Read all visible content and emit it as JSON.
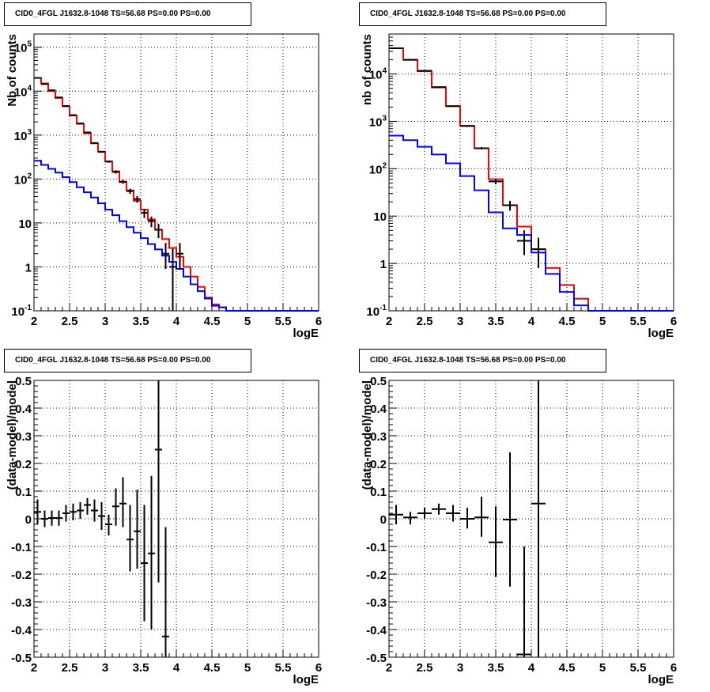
{
  "chart_data": [
    {
      "id": "p1",
      "type": "histogram",
      "title": "CID0_4FGL J1632.8-1048 TS=56.68 PS=0.00 PS=0.00",
      "xlabel": "logE",
      "ylabel": "Nb of counts",
      "log_y": true,
      "grid": true,
      "xlim": [
        2,
        6
      ],
      "ylim": [
        0.1,
        200000
      ],
      "x_ticks": [
        "2",
        "2.5",
        "3",
        "3.5",
        "4",
        "4.5",
        "5",
        "5.5",
        "6"
      ],
      "y_ticks": [
        "10^-1",
        "1",
        "10",
        "10^2",
        "10^3",
        "10^4",
        "10^5"
      ],
      "bin_edges": [
        2.0,
        2.1,
        2.2,
        2.3,
        2.4,
        2.5,
        2.6,
        2.7,
        2.8,
        2.9,
        3.0,
        3.1,
        3.2,
        3.3,
        3.4,
        3.5,
        3.6,
        3.7,
        3.8,
        3.9,
        4.0,
        4.1,
        4.2,
        4.3,
        4.4,
        4.5,
        4.6,
        4.7,
        4.8,
        4.9,
        5.0,
        5.1,
        5.2,
        5.3,
        5.4,
        5.5,
        5.6,
        5.7,
        5.8,
        5.9,
        6.0
      ],
      "series": [
        {
          "color": "#ff0000",
          "kind": "step",
          "values": [
            20000,
            15000,
            10000,
            7000,
            4500,
            2800,
            1800,
            1100,
            650,
            420,
            250,
            150,
            85,
            55,
            32,
            20,
            12,
            7,
            4.3,
            2.7,
            1.7,
            1.0,
            0.6,
            0.35,
            0.2,
            0.14,
            0.12,
            0.1,
            0.1,
            0.1,
            0.1,
            0.1,
            0.1,
            0.1,
            0.1,
            0.1,
            0.1,
            0.1,
            0.1,
            0.1
          ]
        },
        {
          "color": "#0000ff",
          "kind": "step",
          "values": [
            260,
            210,
            170,
            140,
            110,
            85,
            65,
            50,
            38,
            28,
            20,
            15,
            11,
            8,
            6,
            4.5,
            3.3,
            2.5,
            1.8,
            1.3,
            0.9,
            0.6,
            0.4,
            0.28,
            0.19,
            0.13,
            0.12,
            0.1,
            0.1,
            0.1,
            0.1,
            0.1,
            0.1,
            0.1,
            0.1,
            0.1,
            0.1,
            0.1,
            0.1,
            0.1
          ]
        },
        {
          "color": "#000000",
          "kind": "points",
          "x": [
            2.05,
            2.15,
            2.25,
            2.35,
            2.45,
            2.55,
            2.65,
            2.75,
            2.85,
            2.95,
            3.05,
            3.15,
            3.25,
            3.35,
            3.45,
            3.55,
            3.65,
            3.75,
            3.85,
            3.95,
            4.05
          ],
          "y": [
            20000,
            14500,
            10500,
            7200,
            4600,
            2850,
            1850,
            1150,
            660,
            415,
            250,
            145,
            87,
            53,
            35,
            17,
            11,
            7,
            2,
            1,
            2
          ],
          "ylo": [
            19860,
            14380,
            10400,
            7115,
            4530,
            2800,
            1810,
            1115,
            635,
            395,
            235,
            133,
            78,
            46,
            29,
            13,
            8,
            4.5,
            0.9,
            0.1,
            0.9
          ],
          "yhi": [
            20140,
            14620,
            10600,
            7285,
            4670,
            2900,
            1890,
            1185,
            685,
            435,
            265,
            157,
            96,
            60,
            41,
            21,
            14,
            9.5,
            3.5,
            2.6,
            3.5
          ]
        }
      ]
    },
    {
      "id": "p2",
      "type": "histogram",
      "title": "CID0_4FGL J1632.8-1048 TS=56.68 PS=0.00 PS=0.00",
      "xlabel": "logE",
      "ylabel": "nb of counts",
      "log_y": true,
      "grid": true,
      "xlim": [
        2,
        6
      ],
      "ylim": [
        0.1,
        70000
      ],
      "x_ticks": [
        "2",
        "2.5",
        "3",
        "3.5",
        "4",
        "4.5",
        "5",
        "5.5",
        "6"
      ],
      "y_ticks": [
        "10^-1",
        "1",
        "10",
        "10^2",
        "10^3",
        "10^4"
      ],
      "bin_edges": [
        2.0,
        2.2,
        2.4,
        2.6,
        2.8,
        3.0,
        3.2,
        3.4,
        3.6,
        3.8,
        4.0,
        4.2,
        4.4,
        4.6,
        4.8,
        5.0,
        5.2,
        5.4,
        5.6,
        5.8,
        6.0
      ],
      "series": [
        {
          "color": "#ff0000",
          "kind": "step",
          "values": [
            35000,
            20000,
            11500,
            5200,
            2100,
            800,
            270,
            60,
            17,
            6,
            2,
            0.8,
            0.35,
            0.18,
            0.1,
            0.1,
            0.1,
            0.1,
            0.1,
            0.1
          ]
        },
        {
          "color": "#0000ff",
          "kind": "step",
          "values": [
            500,
            400,
            290,
            200,
            130,
            70,
            35,
            12,
            5.5,
            4,
            1.7,
            0.6,
            0.25,
            0.13,
            0.1,
            0.1,
            0.1,
            0.1,
            0.1,
            0.1
          ]
        },
        {
          "color": "#000000",
          "kind": "points",
          "x": [
            2.1,
            2.3,
            2.5,
            2.7,
            2.9,
            3.1,
            3.3,
            3.5,
            3.7,
            3.9,
            4.1
          ],
          "y": [
            35000,
            20000,
            11700,
            5300,
            2100,
            800,
            270,
            54,
            17,
            3,
            2
          ],
          "ylo": [
            34810,
            19860,
            11590,
            5230,
            2055,
            770,
            255,
            47,
            13,
            1.5,
            0.8
          ],
          "yhi": [
            35190,
            20140,
            11810,
            5370,
            2145,
            830,
            285,
            61,
            21,
            5,
            3.5
          ]
        }
      ]
    },
    {
      "id": "p3",
      "type": "scatter",
      "title": "CID0_4FGL J1632.8-1048 TS=56.68 PS=0.00 PS=0.00",
      "xlabel": "logE",
      "ylabel": "(data-model)/model",
      "log_y": false,
      "grid": true,
      "xlim": [
        2,
        6
      ],
      "ylim": [
        -0.5,
        0.5
      ],
      "x_ticks": [
        "2",
        "2.5",
        "3",
        "3.5",
        "4",
        "4.5",
        "5",
        "5.5",
        "6"
      ],
      "y_ticks": [
        "-0.5",
        "-0.4",
        "-0.3",
        "-0.2",
        "-0.1",
        "0",
        "0.1",
        "0.2",
        "0.3",
        "0.4",
        "0.5"
      ],
      "series": [
        {
          "color": "#000000",
          "kind": "points",
          "x": [
            2.05,
            2.15,
            2.25,
            2.35,
            2.45,
            2.55,
            2.65,
            2.75,
            2.85,
            2.95,
            3.05,
            3.15,
            3.25,
            3.35,
            3.45,
            3.55,
            3.65,
            3.75,
            3.85
          ],
          "y": [
            0.025,
            0.0,
            0.003,
            0.003,
            0.02,
            0.025,
            0.03,
            0.05,
            0.03,
            0.01,
            -0.02,
            0.045,
            0.055,
            -0.075,
            -0.045,
            -0.16,
            -0.125,
            0.25,
            -0.425
          ],
          "ylo": [
            -0.02,
            -0.03,
            -0.025,
            -0.025,
            -0.01,
            -0.005,
            0.0,
            0.015,
            -0.01,
            -0.04,
            -0.06,
            -0.025,
            -0.03,
            -0.19,
            -0.18,
            -0.37,
            -0.4,
            -0.23,
            -0.5
          ],
          "yhi": [
            0.07,
            0.03,
            0.03,
            0.03,
            0.05,
            0.055,
            0.06,
            0.075,
            0.07,
            0.06,
            0.015,
            0.11,
            0.15,
            0.05,
            0.105,
            0.05,
            0.155,
            0.5,
            -0.03
          ]
        }
      ]
    },
    {
      "id": "p4",
      "type": "scatter",
      "title": "CID0_4FGL J1632.8-1048 TS=56.68 PS=0.00 PS=0.00",
      "xlabel": "logE",
      "ylabel": "(data-model)/model",
      "log_y": false,
      "grid": true,
      "xlim": [
        2,
        6
      ],
      "ylim": [
        -0.5,
        0.5
      ],
      "x_ticks": [
        "2",
        "2.5",
        "3",
        "3.5",
        "4",
        "4.5",
        "5",
        "5.5",
        "6"
      ],
      "y_ticks": [
        "-0.5",
        "-0.4",
        "-0.3",
        "-0.2",
        "-0.1",
        "0",
        "0.1",
        "0.2",
        "0.3",
        "0.4",
        "0.5"
      ],
      "series": [
        {
          "color": "#000000",
          "kind": "points",
          "x": [
            2.1,
            2.3,
            2.5,
            2.7,
            2.9,
            3.1,
            3.3,
            3.5,
            3.7,
            3.9,
            4.1
          ],
          "y": [
            0.015,
            0.005,
            0.02,
            0.035,
            0.02,
            0.0,
            0.005,
            -0.085,
            -0.003,
            -0.49,
            0.055
          ],
          "ylo": [
            -0.02,
            -0.02,
            0.0,
            0.015,
            -0.01,
            -0.035,
            -0.065,
            -0.21,
            -0.245,
            -0.5,
            -0.5
          ],
          "yhi": [
            0.05,
            0.025,
            0.04,
            0.055,
            0.05,
            0.04,
            0.08,
            0.045,
            0.24,
            -0.1,
            0.5
          ]
        }
      ]
    }
  ]
}
